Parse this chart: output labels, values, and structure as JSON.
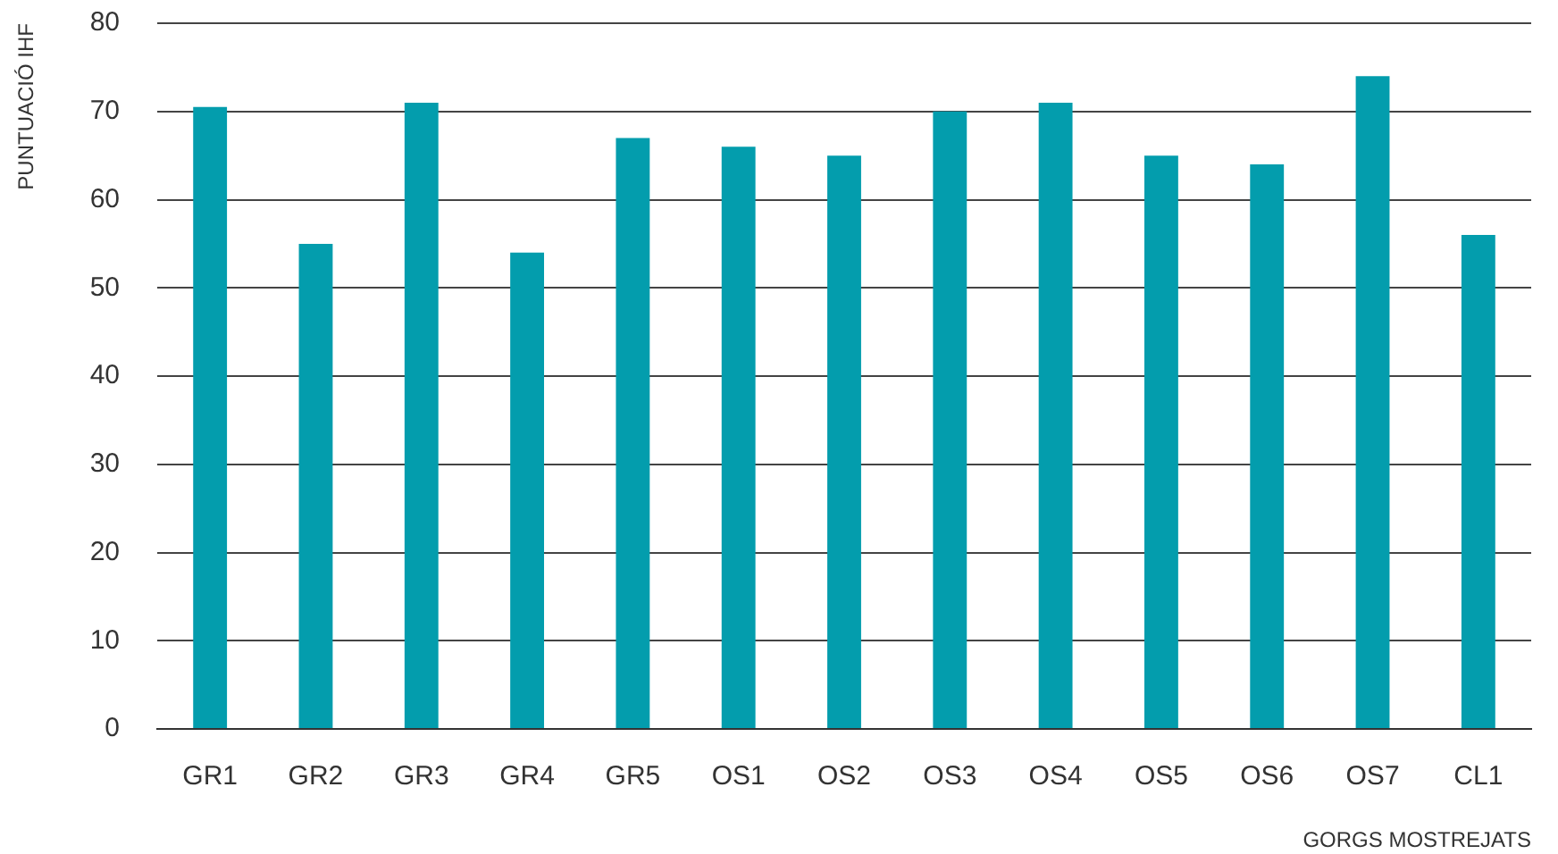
{
  "chart_data": {
    "type": "bar",
    "xlabel": "GORGS MOSTREJATS",
    "ylabel": "PUNTUACIÓ IHF",
    "categories": [
      "GR1",
      "GR2",
      "GR3",
      "GR4",
      "GR5",
      "OS1",
      "OS2",
      "OS3",
      "OS4",
      "OS5",
      "OS6",
      "OS7",
      "CL1"
    ],
    "values": [
      70.5,
      55,
      71,
      54,
      67,
      66,
      65,
      70,
      71,
      65,
      64,
      74,
      56
    ],
    "color": "#039dad",
    "ylim": [
      0,
      80
    ],
    "yticks": [
      0,
      10,
      20,
      30,
      40,
      50,
      60,
      70,
      80
    ],
    "grid": "y"
  }
}
